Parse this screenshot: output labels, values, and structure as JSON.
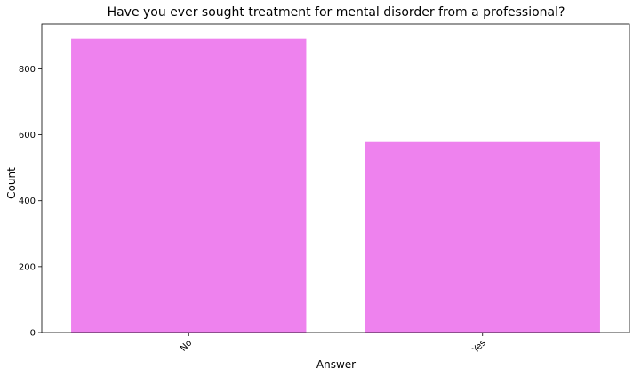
{
  "chart_data": {
    "type": "bar",
    "title": "Have you ever sought treatment for mental disorder from a professional?",
    "xlabel": "Answer",
    "ylabel": "Count",
    "categories": [
      "No",
      "Yes"
    ],
    "values": [
      891,
      578
    ],
    "ylim": [
      0,
      936
    ],
    "yticks": [
      0,
      200,
      400,
      600,
      800
    ],
    "bar_color": "#ee82ee",
    "grid": false,
    "x_tick_rotation": -45
  }
}
